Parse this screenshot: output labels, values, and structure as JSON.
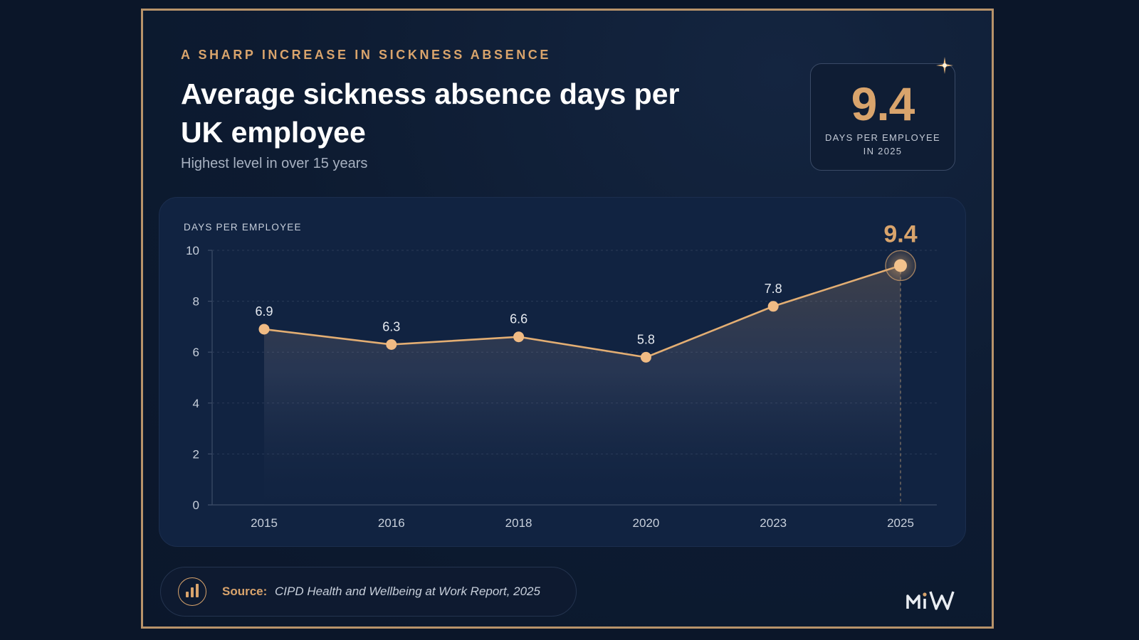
{
  "header": {
    "eyebrow": "A SHARP INCREASE IN SICKNESS ABSENCE",
    "title": "Average sickness absence days per UK employee",
    "subtitle": "Highest level in over 15 years"
  },
  "kpi": {
    "value": "9.4",
    "label": "DAYS PER EMPLOYEE IN 2025"
  },
  "source": {
    "label": "Source:",
    "value": "CIPD Health and Wellbeing at Work Report, 2025",
    "icon": "bar-chart-icon"
  },
  "brand": {
    "logo_text": "MiW"
  },
  "colors": {
    "accent": "#d9a46c",
    "background": "#0b1629",
    "panel": "#112341",
    "text": "#ffffff",
    "muted": "#a7b1c1"
  },
  "chart_data": {
    "type": "line",
    "title": "Average sickness absence days per UK employee",
    "ylabel": "DAYS PER EMPLOYEE",
    "xlabel": "",
    "categories": [
      "2015",
      "2016",
      "2018",
      "2020",
      "2023",
      "2025"
    ],
    "series": [
      {
        "values": [
          6.9,
          6.3,
          6.6,
          5.8,
          7.8,
          9.4
        ]
      }
    ],
    "ylim": [
      0,
      10
    ],
    "yticks": [
      0,
      2,
      4,
      6,
      8,
      10
    ],
    "grid": true,
    "legend": "none",
    "highlight": {
      "category": "2025",
      "value": 9.4
    },
    "area_fill": true
  }
}
